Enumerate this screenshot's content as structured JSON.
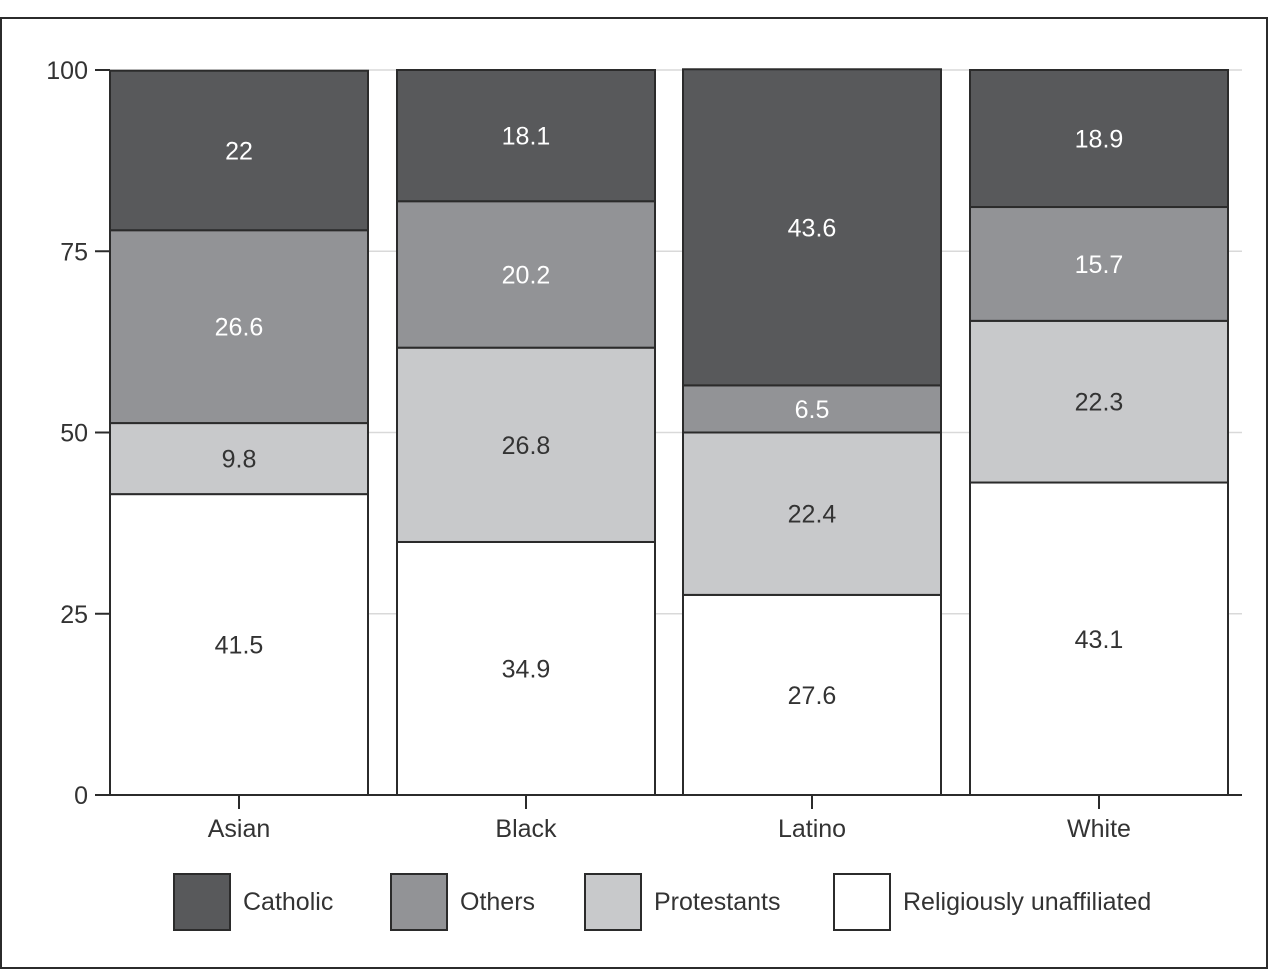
{
  "chart_data": {
    "type": "bar",
    "stacked": true,
    "title": "",
    "xlabel": "",
    "ylabel": "",
    "ylim": [
      0,
      100
    ],
    "yticks": [
      "0",
      "25",
      "50",
      "75",
      "100"
    ],
    "grid": true,
    "legend_position": "bottom",
    "categories": [
      "Asian",
      "Black",
      "Latino",
      "White"
    ],
    "series": [
      {
        "name": "Religiously unaffiliated",
        "color": "#ffffff",
        "label_color": "#333333",
        "values": [
          41.5,
          34.9,
          27.6,
          43.1
        ],
        "labels": [
          "41.5",
          "34.9",
          "27.6",
          "43.1"
        ]
      },
      {
        "name": "Protestants",
        "color": "#c8c9cb",
        "label_color": "#333333",
        "values": [
          9.8,
          26.8,
          22.4,
          22.3
        ],
        "labels": [
          "9.8",
          "26.8",
          "22.4",
          "22.3"
        ]
      },
      {
        "name": "Others",
        "color": "#929396",
        "label_color": "#ffffff",
        "values": [
          26.6,
          20.2,
          6.5,
          15.7
        ],
        "labels": [
          "26.6",
          "20.2",
          "6.5",
          "15.7"
        ]
      },
      {
        "name": "Catholic",
        "color": "#58595b",
        "label_color": "#ffffff",
        "values": [
          22,
          18.1,
          43.6,
          18.9
        ],
        "labels": [
          "22",
          "18.1",
          "43.6",
          "18.9"
        ]
      }
    ],
    "legend_order": [
      "Catholic",
      "Others",
      "Protestants",
      "Religiously unaffiliated"
    ]
  }
}
